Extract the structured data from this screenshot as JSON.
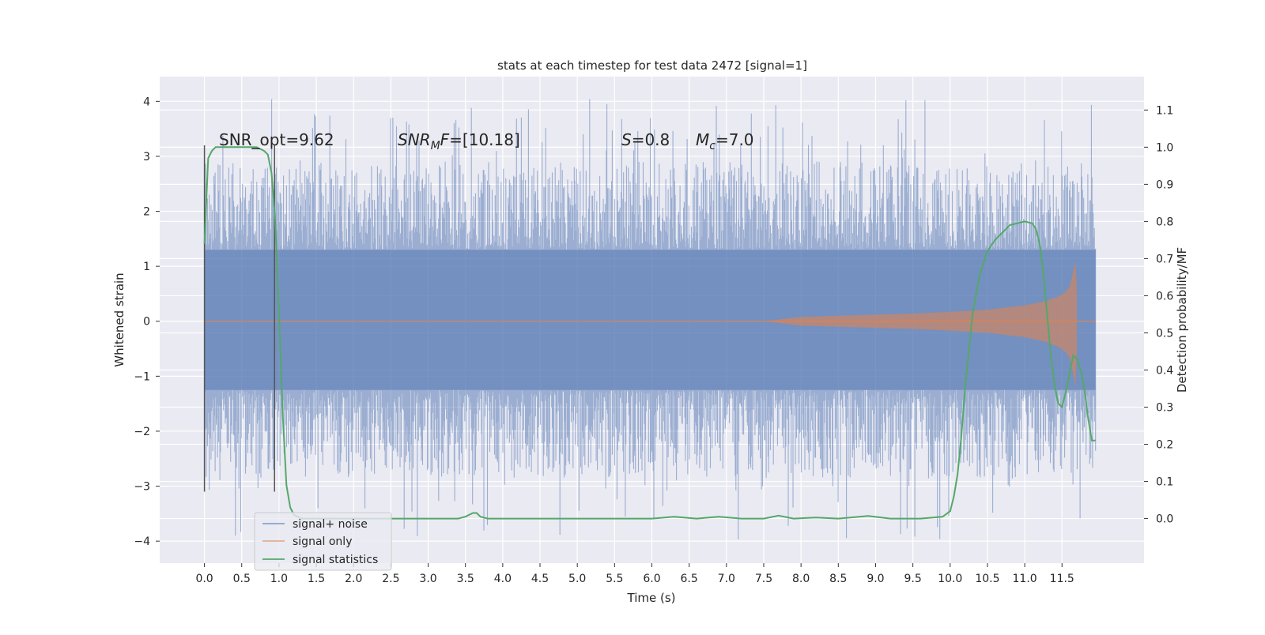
{
  "chart_data": {
    "type": "line",
    "title": "stats at each timestep for test data 2472 [signal=1]",
    "xlabel": "Time (s)",
    "ylabel": "Whitened strain",
    "ylabel_right": "Detection probability/MF",
    "xlim": [
      -0.6,
      12.6
    ],
    "ylim": [
      -4.4,
      4.45
    ],
    "ylim_right": [
      -0.12,
      1.19
    ],
    "x_ticks": [
      0.0,
      0.5,
      1.0,
      1.5,
      2.0,
      2.5,
      3.0,
      3.5,
      4.0,
      4.5,
      5.0,
      5.5,
      6.0,
      6.5,
      7.0,
      7.5,
      8.0,
      8.5,
      9.0,
      9.5,
      10.0,
      10.5,
      11.0,
      11.5
    ],
    "x_tick_labels": [
      "0.0",
      "0.5",
      "1.0",
      "1.5",
      "2.0",
      "2.5",
      "3.0",
      "3.5",
      "4.0",
      "4.5",
      "5.0",
      "5.5",
      "6.0",
      "6.5",
      "7.0",
      "7.5",
      "8.0",
      "8.5",
      "9.0",
      "9.5",
      "10.0",
      "10.5",
      "11.0",
      "11.5"
    ],
    "y_ticks": [
      -4,
      -3,
      -2,
      -1,
      0,
      1,
      2,
      3,
      4
    ],
    "y_tick_labels": [
      "−4",
      "−3",
      "−2",
      "−1",
      "0",
      "1",
      "2",
      "3",
      "4"
    ],
    "y_right_ticks": [
      0.0,
      0.1,
      0.2,
      0.3,
      0.4,
      0.5,
      0.6,
      0.7,
      0.8,
      0.9,
      1.0,
      1.1
    ],
    "y_right_tick_labels": [
      "0.0",
      "0.1",
      "0.2",
      "0.3",
      "0.4",
      "0.5",
      "0.6",
      "0.7",
      "0.8",
      "0.9",
      "1.0",
      "1.1"
    ],
    "grid": true,
    "legend_placement": "lower-left",
    "annotations": {
      "snr_opt": "SNR_opt=9.62",
      "snr_mf_sym": "SNR",
      "snr_mf_sub": "M",
      "snr_mf_rest": "F=[10.18]",
      "s_sym": "S",
      "s_rest": "=0.8",
      "mc_sym": "M",
      "mc_sub": "c",
      "mc_rest": "=7.0"
    },
    "vlines": [
      0.0,
      0.94
    ],
    "vline_range": [
      -3.1,
      3.2
    ],
    "noise": {
      "t_start": 0.0,
      "t_end": 11.95,
      "typical_range": [
        -2.8,
        3.0
      ],
      "peak_max": 4.1,
      "peak_min": -4.0
    },
    "signal_envelope": {
      "x": [
        7.5,
        8.0,
        8.5,
        9.0,
        9.5,
        10.0,
        10.5,
        11.0,
        11.3,
        11.5,
        11.6,
        11.65,
        11.68,
        11.7
      ],
      "upper": [
        0.0,
        0.08,
        0.1,
        0.12,
        0.14,
        0.17,
        0.21,
        0.29,
        0.37,
        0.48,
        0.62,
        0.9,
        1.1,
        0.6
      ],
      "lower": [
        0.0,
        -0.08,
        -0.1,
        -0.12,
        -0.14,
        -0.17,
        -0.21,
        -0.29,
        -0.38,
        -0.5,
        -0.65,
        -0.95,
        -1.2,
        -0.5
      ]
    },
    "series": [
      {
        "name": "signal+ noise",
        "color": "#4c72b0",
        "axis": "left"
      },
      {
        "name": "signal only",
        "color": "#dd8452",
        "axis": "left"
      },
      {
        "name": "signal statistics",
        "color": "#55a868",
        "axis": "right",
        "x": [
          0.0,
          0.05,
          0.1,
          0.15,
          0.2,
          0.3,
          0.5,
          0.7,
          0.8,
          0.85,
          0.9,
          0.95,
          1.0,
          1.05,
          1.1,
          1.15,
          1.2,
          1.3,
          1.5,
          2.0,
          3.0,
          3.4,
          3.5,
          3.6,
          3.65,
          3.7,
          3.8,
          4.0,
          5.0,
          6.0,
          6.3,
          6.6,
          6.9,
          7.2,
          7.5,
          7.7,
          7.9,
          8.2,
          8.5,
          8.9,
          9.2,
          9.6,
          9.9,
          10.0,
          10.05,
          10.1,
          10.15,
          10.2,
          10.3,
          10.4,
          10.5,
          10.6,
          10.7,
          10.8,
          10.9,
          11.0,
          11.1,
          11.15,
          11.2,
          11.25,
          11.3,
          11.35,
          11.4,
          11.45,
          11.5,
          11.55,
          11.6,
          11.65,
          11.7,
          11.75,
          11.8,
          11.85,
          11.9,
          11.95
        ],
        "values": [
          0.74,
          0.97,
          0.99,
          1.0,
          1.0,
          1.0,
          1.0,
          1.0,
          0.99,
          0.98,
          0.93,
          0.8,
          0.55,
          0.28,
          0.09,
          0.03,
          0.01,
          0.0,
          0.0,
          0.0,
          0.0,
          0.0,
          0.005,
          0.015,
          0.015,
          0.005,
          0.0,
          0.0,
          0.0,
          0.0,
          0.005,
          0.0,
          0.005,
          0.0,
          0.0,
          0.008,
          0.0,
          0.003,
          0.0,
          0.007,
          0.0,
          0.0,
          0.005,
          0.02,
          0.06,
          0.12,
          0.22,
          0.35,
          0.55,
          0.66,
          0.72,
          0.75,
          0.77,
          0.79,
          0.795,
          0.8,
          0.795,
          0.78,
          0.74,
          0.66,
          0.55,
          0.44,
          0.36,
          0.31,
          0.3,
          0.34,
          0.39,
          0.44,
          0.43,
          0.4,
          0.35,
          0.27,
          0.21,
          0.21
        ]
      }
    ]
  }
}
